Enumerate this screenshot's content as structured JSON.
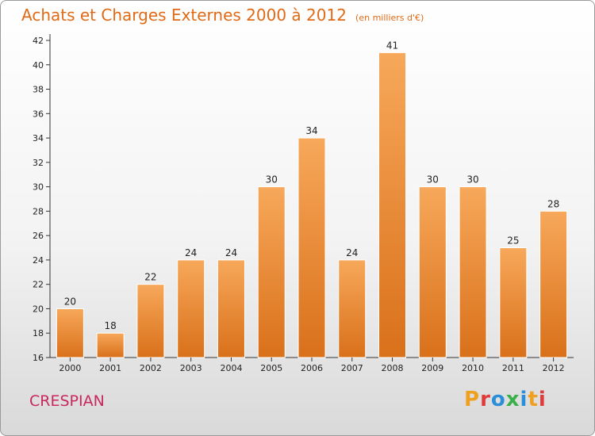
{
  "title": "Achats et Charges Externes 2000 à 2012",
  "subtitle": "(en milliers d'€)",
  "place_name": "CRESPIAN",
  "logo_text": "Proxiti",
  "logo_colors": [
    "#f0a020",
    "#e03a3a",
    "#2a8fd8",
    "#3ab04a",
    "#2a8fd8",
    "#f0a020",
    "#e03a3a"
  ],
  "colors": {
    "bar_light": "#f7a85a",
    "bar_dark": "#d9701a",
    "text": "#e06a16",
    "place": "#c8285f"
  },
  "chart_data": {
    "type": "bar",
    "categories": [
      "2000",
      "2001",
      "2002",
      "2003",
      "2004",
      "2005",
      "2006",
      "2007",
      "2008",
      "2009",
      "2010",
      "2011",
      "2012"
    ],
    "values": [
      20,
      18,
      22,
      24,
      24,
      30,
      34,
      24,
      41,
      30,
      30,
      25,
      28
    ],
    "data_labels": [
      "20",
      "18",
      "22",
      "24",
      "24",
      "30",
      "34",
      "24",
      "41",
      "30",
      "30",
      "25",
      "28"
    ],
    "yticks": [
      "16",
      "18",
      "20",
      "22",
      "24",
      "26",
      "28",
      "30",
      "32",
      "34",
      "36",
      "38",
      "40",
      "42"
    ],
    "ylim": [
      16,
      42
    ],
    "grid": false
  }
}
